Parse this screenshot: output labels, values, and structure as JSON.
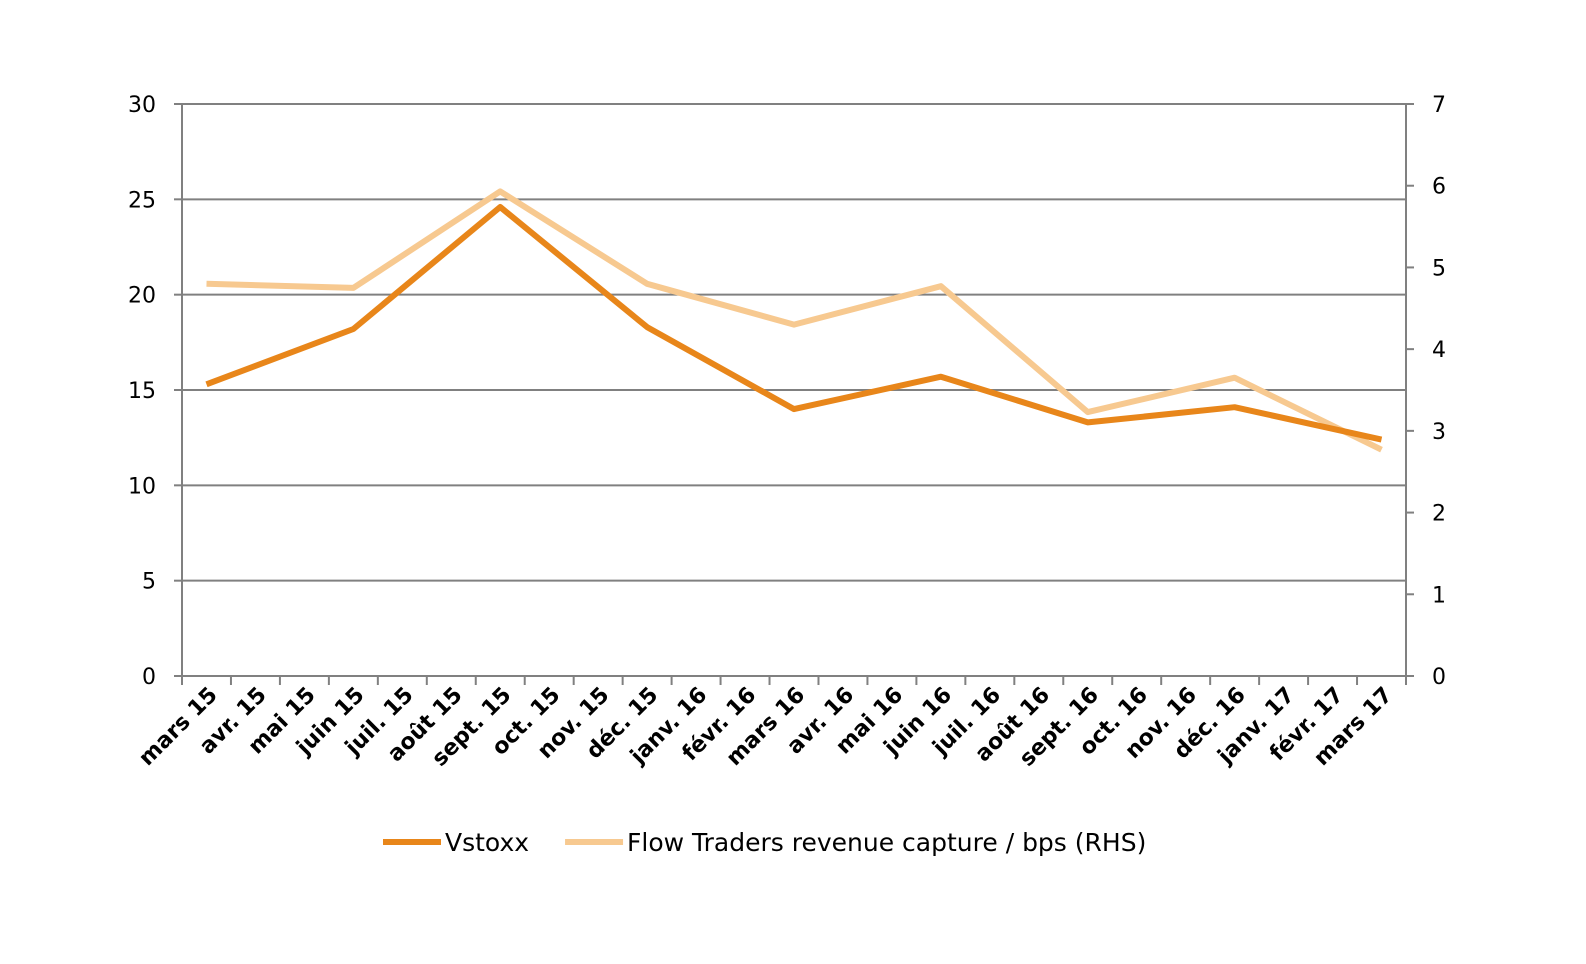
{
  "chart_data": {
    "type": "line",
    "categories": [
      "mars 15",
      "avr. 15",
      "mai 15",
      "juin 15",
      "juil. 15",
      "août 15",
      "sept. 15",
      "oct. 15",
      "nov. 15",
      "déc. 15",
      "janv. 16",
      "févr. 16",
      "mars 16",
      "avr. 16",
      "mai 16",
      "juin 16",
      "juil. 16",
      "août 16",
      "sept. 16",
      "oct. 16",
      "nov. 16",
      "déc. 16",
      "janv. 17",
      "févr. 17",
      "mars 17"
    ],
    "series": [
      {
        "name": "Vstoxx",
        "axis": "left",
        "color": "#e8861a",
        "x": [
          "mars 15",
          "juin 15",
          "sept. 15",
          "déc. 15",
          "mars 16",
          "juin 16",
          "sept. 16",
          "déc. 16",
          "mars 17"
        ],
        "values": [
          15.3,
          18.2,
          24.6,
          18.3,
          14.0,
          15.7,
          13.3,
          14.1,
          12.4
        ]
      },
      {
        "name": "Flow Traders revenue capture / bps (RHS)",
        "axis": "right",
        "color": "#f7c990",
        "x": [
          "mars 15",
          "juin 15",
          "sept. 15",
          "déc. 15",
          "mars 16",
          "juin 16",
          "sept. 16",
          "déc. 16",
          "mars 17"
        ],
        "values": [
          4.8,
          4.75,
          5.93,
          4.8,
          4.3,
          4.77,
          3.23,
          3.65,
          2.77
        ]
      }
    ],
    "y_left": {
      "ylim": [
        0,
        30
      ],
      "ticks": [
        "0",
        "5",
        "10",
        "15",
        "20",
        "25",
        "30"
      ]
    },
    "y_right": {
      "ylim": [
        0,
        7
      ],
      "ticks": [
        "0",
        "1",
        "2",
        "3",
        "4",
        "5",
        "6",
        "7"
      ]
    },
    "grid": true,
    "legend": "bottom-center"
  }
}
